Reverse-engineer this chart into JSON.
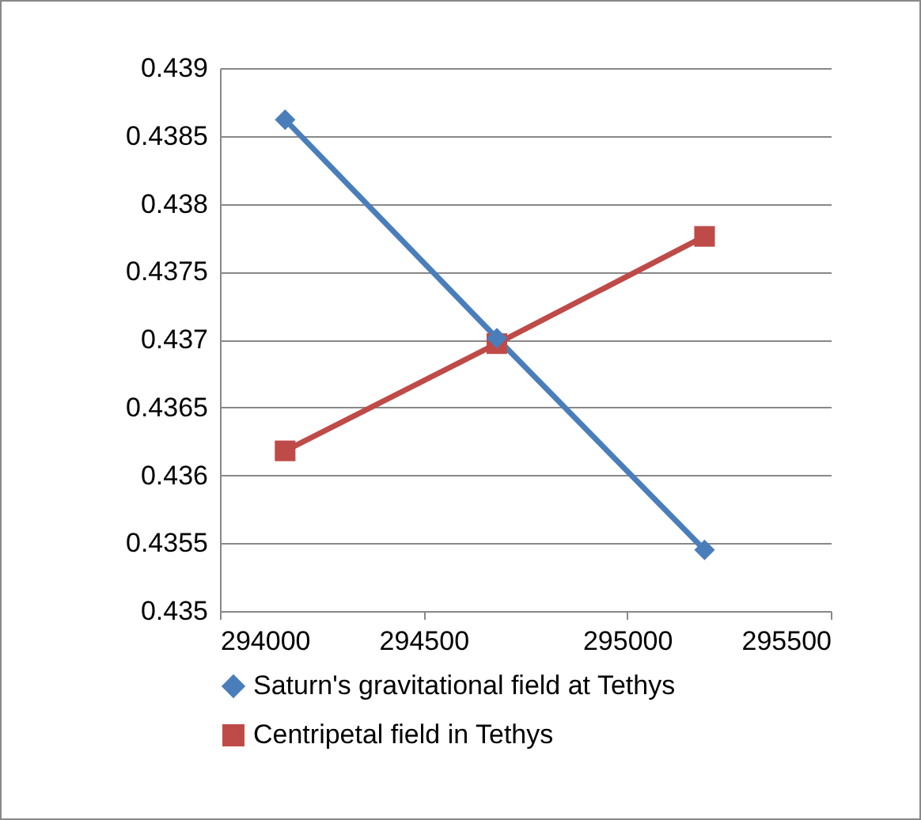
{
  "chart_data": {
    "type": "line",
    "x": [
      294160,
      294680,
      295190
    ],
    "series": [
      {
        "name": "Saturn's gravitational field at Tethys",
        "color": "#4a7ebb",
        "marker": "diamond",
        "values": [
          0.43862,
          0.43701,
          0.43545
        ]
      },
      {
        "name": "Centripetal field in Tethys",
        "color": "#be4b48",
        "marker": "square",
        "values": [
          0.43618,
          0.43697,
          0.43776
        ]
      }
    ],
    "xlim": [
      294000,
      295500
    ],
    "xticks": [
      294000,
      294500,
      295000,
      295500
    ],
    "ylim": [
      0.435,
      0.439
    ],
    "yticks": [
      0.435,
      0.4355,
      0.436,
      0.4365,
      0.437,
      0.4375,
      0.438,
      0.4385,
      0.439
    ],
    "grid": "y",
    "legend": "bottom"
  }
}
